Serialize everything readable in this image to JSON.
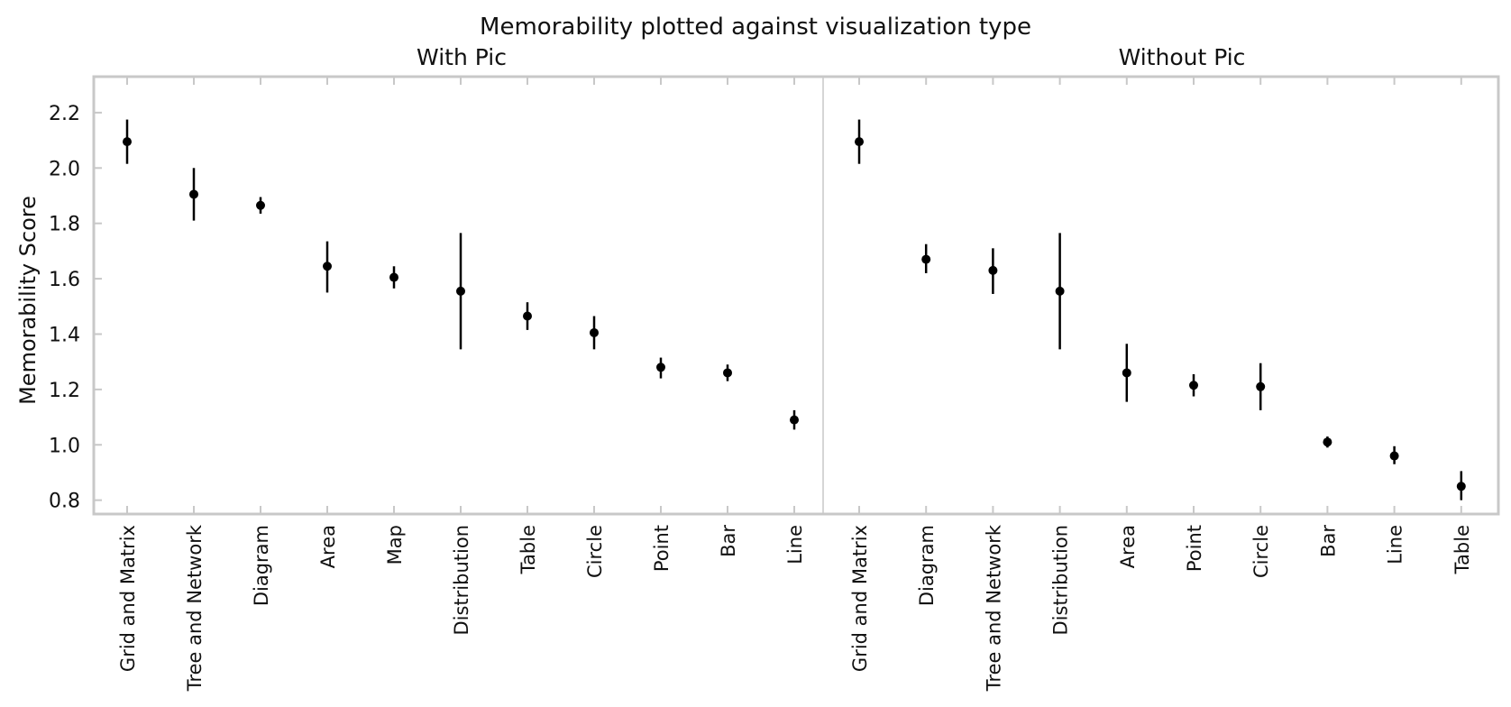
{
  "chart_data": {
    "type": "scatter",
    "title": "Memorability plotted against visualization type",
    "ylabel": "Memorability Score",
    "ylim": [
      0.75,
      2.33
    ],
    "yticks": [
      0.8,
      1.0,
      1.2,
      1.4,
      1.6,
      1.8,
      2.0,
      2.2
    ],
    "ytick_labels": [
      "0.8",
      "1.0",
      "1.2",
      "1.4",
      "1.6",
      "1.8",
      "2.0",
      "2.2"
    ],
    "error_bars": true,
    "grid": false,
    "panels": [
      {
        "title": "With Pic",
        "categories": [
          "Grid and Matrix",
          "Tree and Network",
          "Diagram",
          "Area",
          "Map",
          "Distribution",
          "Table",
          "Circle",
          "Point",
          "Bar",
          "Line"
        ],
        "values": [
          2.095,
          1.905,
          1.865,
          1.645,
          1.605,
          1.555,
          1.465,
          1.405,
          1.28,
          1.26,
          1.09
        ],
        "lower": [
          2.015,
          1.81,
          1.835,
          1.55,
          1.565,
          1.345,
          1.415,
          1.345,
          1.24,
          1.23,
          1.055
        ],
        "upper": [
          2.175,
          2.0,
          1.895,
          1.735,
          1.645,
          1.765,
          1.515,
          1.465,
          1.315,
          1.29,
          1.125
        ]
      },
      {
        "title": "Without Pic",
        "categories": [
          "Grid and Matrix",
          "Diagram",
          "Tree and Network",
          "Distribution",
          "Area",
          "Point",
          "Circle",
          "Bar",
          "Line",
          "Table"
        ],
        "values": [
          2.095,
          1.67,
          1.63,
          1.555,
          1.26,
          1.215,
          1.21,
          1.01,
          0.96,
          0.85
        ],
        "lower": [
          2.015,
          1.62,
          1.545,
          1.345,
          1.155,
          1.175,
          1.125,
          0.99,
          0.93,
          0.8
        ],
        "upper": [
          2.175,
          1.725,
          1.71,
          1.765,
          1.365,
          1.255,
          1.295,
          1.03,
          0.995,
          0.905
        ]
      }
    ]
  }
}
